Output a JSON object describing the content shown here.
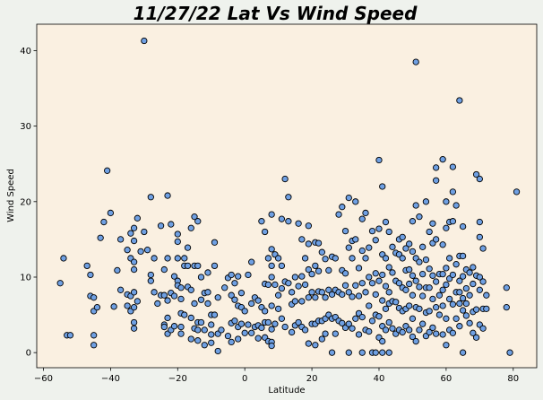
{
  "chart_data": {
    "type": "scatter",
    "title": "11/27/22 Lat Vs Wind Speed",
    "xlabel": "Latitude",
    "ylabel": "Wind Speed",
    "xlim": [
      -62,
      87
    ],
    "ylim": [
      -2,
      43.5
    ],
    "xticks": [
      -60,
      -40,
      -20,
      0,
      20,
      40,
      60,
      80
    ],
    "yticks": [
      0,
      10,
      20,
      30,
      40
    ],
    "grid": false,
    "colors": {
      "plot_background": "#faf0e1",
      "figure_background": "#eff2ed",
      "marker_fill": "#6fa0e3",
      "marker_edge": "#000000"
    },
    "points": [
      [
        -55,
        9.2
      ],
      [
        -54,
        12.5
      ],
      [
        -53,
        2.3
      ],
      [
        -52,
        2.3
      ],
      [
        -47,
        11.5
      ],
      [
        -46,
        10.3
      ],
      [
        -46,
        7.5
      ],
      [
        -45,
        7.3
      ],
      [
        -45,
        5.5
      ],
      [
        -45,
        2.3
      ],
      [
        -45,
        1.0
      ],
      [
        -44,
        6.0
      ],
      [
        -43,
        15.2
      ],
      [
        -42,
        17.3
      ],
      [
        -41,
        24.1
      ],
      [
        -40,
        18.5
      ],
      [
        -39,
        6.1
      ],
      [
        -38,
        10.9
      ],
      [
        -37,
        15.0
      ],
      [
        -37,
        8.3
      ],
      [
        -35,
        13.6
      ],
      [
        -35,
        7.7
      ],
      [
        -35,
        6.2
      ],
      [
        -34,
        15.8
      ],
      [
        -34,
        12.5
      ],
      [
        -34,
        7.5
      ],
      [
        -34,
        5.5
      ],
      [
        -33,
        16.5
      ],
      [
        -33,
        14.8
      ],
      [
        -33,
        12.0
      ],
      [
        -33,
        11.0
      ],
      [
        -33,
        8.0
      ],
      [
        -33,
        6.0
      ],
      [
        -33,
        4.0
      ],
      [
        -33,
        3.2
      ],
      [
        -32,
        17.8
      ],
      [
        -32,
        6.8
      ],
      [
        -31,
        13.4
      ],
      [
        -30,
        16.0
      ],
      [
        -30,
        41.3
      ],
      [
        -29,
        13.6
      ],
      [
        -28,
        20.6
      ],
      [
        -28,
        10.3
      ],
      [
        -28,
        9.5
      ],
      [
        -27,
        12.5
      ],
      [
        -27,
        8.0
      ],
      [
        -26,
        6.5
      ],
      [
        -25,
        16.8
      ],
      [
        -25,
        7.6
      ],
      [
        -24,
        11.0
      ],
      [
        -24,
        7.6
      ],
      [
        -24,
        3.7
      ],
      [
        -24,
        3.4
      ],
      [
        -23,
        20.8
      ],
      [
        -23,
        12.5
      ],
      [
        -23,
        6.9
      ],
      [
        -23,
        4.6
      ],
      [
        -23,
        2.5
      ],
      [
        -22,
        17.0
      ],
      [
        -22,
        7.9
      ],
      [
        -22,
        3.0
      ],
      [
        -21,
        10.1
      ],
      [
        -21,
        7.5
      ],
      [
        -21,
        3.5
      ],
      [
        -20,
        15.7
      ],
      [
        -20,
        14.7
      ],
      [
        -20,
        12.5
      ],
      [
        -20,
        9.5
      ],
      [
        -20,
        8.9
      ],
      [
        -19,
        8.6
      ],
      [
        -19,
        7.1
      ],
      [
        -19,
        5.2
      ],
      [
        -19,
        3.4
      ],
      [
        -19,
        2.5
      ],
      [
        -18,
        12.5
      ],
      [
        -18,
        11.5
      ],
      [
        -18,
        5.0
      ],
      [
        -17,
        13.9
      ],
      [
        -17,
        11.5
      ],
      [
        -17,
        8.7
      ],
      [
        -16,
        16.5
      ],
      [
        -16,
        8.3
      ],
      [
        -16,
        4.6
      ],
      [
        -16,
        1.8
      ],
      [
        -15,
        18.0
      ],
      [
        -15,
        11.5
      ],
      [
        -15,
        6.5
      ],
      [
        -15,
        3.2
      ],
      [
        -14,
        17.4
      ],
      [
        -14,
        11.5
      ],
      [
        -14,
        4.0
      ],
      [
        -14,
        3.0
      ],
      [
        -14,
        1.6
      ],
      [
        -13,
        10.0
      ],
      [
        -13,
        7.0
      ],
      [
        -13,
        4.0
      ],
      [
        -12,
        7.9
      ],
      [
        -12,
        3.0
      ],
      [
        -12,
        1.0
      ],
      [
        -11,
        10.6
      ],
      [
        -11,
        8.0
      ],
      [
        -11,
        6.5
      ],
      [
        -10,
        5.0
      ],
      [
        -10,
        3.7
      ],
      [
        -10,
        2.4
      ],
      [
        -10,
        1.3
      ],
      [
        -9,
        14.6
      ],
      [
        -9,
        11.5
      ],
      [
        -9,
        5.0
      ],
      [
        -8,
        7.3
      ],
      [
        -8,
        2.5
      ],
      [
        -8,
        0.2
      ],
      [
        -7,
        3.0
      ],
      [
        -6,
        8.6
      ],
      [
        -5,
        9.9
      ],
      [
        -5,
        2.2
      ],
      [
        -4,
        10.3
      ],
      [
        -4,
        7.6
      ],
      [
        -4,
        3.9
      ],
      [
        -4,
        1.4
      ],
      [
        -3,
        9.2
      ],
      [
        -3,
        7.0
      ],
      [
        -3,
        4.2
      ],
      [
        -2,
        10.1
      ],
      [
        -2,
        6.2
      ],
      [
        -2,
        3.4
      ],
      [
        -2,
        1.8
      ],
      [
        -1,
        7.9
      ],
      [
        -1,
        6.0
      ],
      [
        -1,
        3.8
      ],
      [
        0,
        5.5
      ],
      [
        0,
        2.6
      ],
      [
        1,
        10.3
      ],
      [
        1,
        3.7
      ],
      [
        2,
        12.0
      ],
      [
        2,
        6.5
      ],
      [
        2,
        2.6
      ],
      [
        3,
        7.3
      ],
      [
        3,
        3.4
      ],
      [
        4,
        6.9
      ],
      [
        4,
        3.6
      ],
      [
        4,
        1.9
      ],
      [
        5,
        17.4
      ],
      [
        5,
        6.0
      ],
      [
        5,
        3.3
      ],
      [
        6,
        16.0
      ],
      [
        6,
        9.1
      ],
      [
        6,
        5.5
      ],
      [
        6,
        4.0
      ],
      [
        6,
        2.0
      ],
      [
        7,
        12.5
      ],
      [
        7,
        9.0
      ],
      [
        7,
        4.0
      ],
      [
        7,
        1.5
      ],
      [
        8,
        18.3
      ],
      [
        8,
        13.7
      ],
      [
        8,
        11.5
      ],
      [
        8,
        10.0
      ],
      [
        8,
        6.2
      ],
      [
        8,
        3.1
      ],
      [
        8,
        1.4
      ],
      [
        8,
        0.9
      ],
      [
        9,
        13.0
      ],
      [
        9,
        9.0
      ],
      [
        9,
        3.8
      ],
      [
        10,
        12.5
      ],
      [
        10,
        7.6
      ],
      [
        10,
        5.8
      ],
      [
        11,
        17.7
      ],
      [
        11,
        11.5
      ],
      [
        11,
        8.5
      ],
      [
        11,
        4.5
      ],
      [
        12,
        23.0
      ],
      [
        12,
        9.4
      ],
      [
        12,
        3.4
      ],
      [
        13,
        20.6
      ],
      [
        13,
        17.4
      ],
      [
        13,
        9.2
      ],
      [
        14,
        8.0
      ],
      [
        14,
        6.4
      ],
      [
        14,
        2.7
      ],
      [
        15,
        10.0
      ],
      [
        15,
        6.8
      ],
      [
        15,
        3.6
      ],
      [
        16,
        17.1
      ],
      [
        16,
        8.8
      ],
      [
        16,
        4.0
      ],
      [
        17,
        15.0
      ],
      [
        17,
        10.1
      ],
      [
        17,
        6.8
      ],
      [
        17,
        3.4
      ],
      [
        18,
        12.5
      ],
      [
        18,
        9.0
      ],
      [
        18,
        3.0
      ],
      [
        19,
        16.8
      ],
      [
        19,
        14.4
      ],
      [
        19,
        11.0
      ],
      [
        19,
        7.3
      ],
      [
        19,
        1.2
      ],
      [
        20,
        10.4
      ],
      [
        20,
        8.0
      ],
      [
        20,
        3.8
      ],
      [
        21,
        14.6
      ],
      [
        21,
        11.5
      ],
      [
        21,
        7.3
      ],
      [
        21,
        3.8
      ],
      [
        21,
        1.0
      ],
      [
        22,
        14.5
      ],
      [
        22,
        10.8
      ],
      [
        22,
        8.1
      ],
      [
        22,
        4.2
      ],
      [
        23,
        13.3
      ],
      [
        23,
        8.0
      ],
      [
        23,
        4.2
      ],
      [
        23,
        1.8
      ],
      [
        24,
        12.4
      ],
      [
        24,
        7.3
      ],
      [
        24,
        4.5
      ],
      [
        24,
        2.5
      ],
      [
        25,
        10.9
      ],
      [
        25,
        8.3
      ],
      [
        25,
        5.0
      ],
      [
        26,
        12.7
      ],
      [
        26,
        7.7
      ],
      [
        26,
        4.5
      ],
      [
        26,
        0.0
      ],
      [
        27,
        12.5
      ],
      [
        27,
        8.3
      ],
      [
        27,
        4.7
      ],
      [
        27,
        2.5
      ],
      [
        28,
        18.3
      ],
      [
        28,
        8.0
      ],
      [
        28,
        4.2
      ],
      [
        29,
        19.3
      ],
      [
        29,
        10.9
      ],
      [
        29,
        7.7
      ],
      [
        29,
        3.9
      ],
      [
        30,
        16.1
      ],
      [
        30,
        10.5
      ],
      [
        30,
        8.9
      ],
      [
        30,
        3.3
      ],
      [
        31,
        20.5
      ],
      [
        31,
        13.9
      ],
      [
        31,
        8.0
      ],
      [
        31,
        3.8
      ],
      [
        31,
        0.0
      ],
      [
        32,
        14.8
      ],
      [
        32,
        12.5
      ],
      [
        32,
        7.4
      ],
      [
        32,
        3.2
      ],
      [
        33,
        20.0
      ],
      [
        33,
        15.0
      ],
      [
        33,
        8.9
      ],
      [
        33,
        4.5
      ],
      [
        34,
        11.2
      ],
      [
        34,
        7.5
      ],
      [
        34,
        5.2
      ],
      [
        34,
        2.4
      ],
      [
        35,
        17.7
      ],
      [
        35,
        13.5
      ],
      [
        35,
        9.2
      ],
      [
        35,
        4.7
      ],
      [
        35,
        0.0
      ],
      [
        36,
        18.5
      ],
      [
        36,
        12.5
      ],
      [
        36,
        8.0
      ],
      [
        36,
        3.0
      ],
      [
        37,
        13.9
      ],
      [
        37,
        10.0
      ],
      [
        37,
        6.2
      ],
      [
        37,
        2.8
      ],
      [
        38,
        16.1
      ],
      [
        38,
        9.2
      ],
      [
        38,
        4.2
      ],
      [
        38,
        0.0
      ],
      [
        39,
        14.9
      ],
      [
        39,
        10.5
      ],
      [
        39,
        7.7
      ],
      [
        39,
        5.0
      ],
      [
        39,
        0.0
      ],
      [
        40,
        25.5
      ],
      [
        40,
        16.4
      ],
      [
        40,
        9.5
      ],
      [
        40,
        4.8
      ],
      [
        40,
        2.0
      ],
      [
        41,
        22.0
      ],
      [
        41,
        13.0
      ],
      [
        41,
        10.3
      ],
      [
        41,
        6.9
      ],
      [
        41,
        3.5
      ],
      [
        41,
        1.5
      ],
      [
        41,
        0.0
      ],
      [
        42,
        17.3
      ],
      [
        42,
        12.5
      ],
      [
        42,
        8.8
      ],
      [
        42,
        5.8
      ],
      [
        42,
        3.0
      ],
      [
        43,
        16.0
      ],
      [
        43,
        11.3
      ],
      [
        43,
        8.0
      ],
      [
        43,
        6.5
      ],
      [
        43,
        4.0
      ],
      [
        43,
        0.0
      ],
      [
        44,
        14.0
      ],
      [
        44,
        10.6
      ],
      [
        44,
        6.8
      ],
      [
        44,
        3.2
      ],
      [
        45,
        13.2
      ],
      [
        45,
        9.5
      ],
      [
        45,
        6.7
      ],
      [
        45,
        2.5
      ],
      [
        46,
        15.0
      ],
      [
        46,
        13.0
      ],
      [
        46,
        9.2
      ],
      [
        46,
        5.9
      ],
      [
        46,
        3.0
      ],
      [
        47,
        15.3
      ],
      [
        47,
        12.5
      ],
      [
        47,
        8.6
      ],
      [
        47,
        5.5
      ],
      [
        47,
        2.7
      ],
      [
        48,
        13.8
      ],
      [
        48,
        10.9
      ],
      [
        48,
        8.3
      ],
      [
        48,
        5.8
      ],
      [
        48,
        3.5
      ],
      [
        49,
        14.4
      ],
      [
        49,
        11.0
      ],
      [
        49,
        9.1
      ],
      [
        49,
        6.2
      ],
      [
        49,
        3.0
      ],
      [
        50,
        17.4
      ],
      [
        50,
        13.4
      ],
      [
        50,
        10.2
      ],
      [
        50,
        7.6
      ],
      [
        50,
        4.5
      ],
      [
        50,
        2.1
      ],
      [
        51,
        38.5
      ],
      [
        51,
        19.5
      ],
      [
        51,
        12.5
      ],
      [
        51,
        9.5
      ],
      [
        51,
        6.0
      ],
      [
        51,
        1.5
      ],
      [
        52,
        18.0
      ],
      [
        52,
        12.0
      ],
      [
        52,
        8.7
      ],
      [
        52,
        5.8
      ],
      [
        52,
        3.0
      ],
      [
        53,
        14.0
      ],
      [
        53,
        10.4
      ],
      [
        53,
        7.5
      ],
      [
        53,
        3.8
      ],
      [
        54,
        20.0
      ],
      [
        54,
        12.3
      ],
      [
        54,
        8.6
      ],
      [
        54,
        5.3
      ],
      [
        54,
        2.2
      ],
      [
        55,
        16.0
      ],
      [
        55,
        11.1
      ],
      [
        55,
        8.6
      ],
      [
        55,
        5.5
      ],
      [
        55,
        2.7
      ],
      [
        56,
        17.1
      ],
      [
        56,
        14.5
      ],
      [
        56,
        10.2
      ],
      [
        56,
        7.1
      ],
      [
        56,
        3.3
      ],
      [
        57,
        24.5
      ],
      [
        57,
        22.8
      ],
      [
        57,
        15.0
      ],
      [
        57,
        9.4
      ],
      [
        57,
        6.0
      ],
      [
        57,
        2.5
      ],
      [
        58,
        10.4
      ],
      [
        58,
        7.6
      ],
      [
        58,
        5.0
      ],
      [
        59,
        25.6
      ],
      [
        59,
        14.3
      ],
      [
        59,
        10.4
      ],
      [
        59,
        8.3
      ],
      [
        59,
        6.2
      ],
      [
        59,
        2.4
      ],
      [
        60,
        20.0
      ],
      [
        60,
        16.5
      ],
      [
        60,
        11.2
      ],
      [
        60,
        9.0
      ],
      [
        60,
        4.5
      ],
      [
        60,
        1.0
      ],
      [
        61,
        17.3
      ],
      [
        61,
        12.5
      ],
      [
        61,
        9.8
      ],
      [
        61,
        7.1
      ],
      [
        61,
        3.0
      ],
      [
        62,
        24.6
      ],
      [
        62,
        21.3
      ],
      [
        62,
        17.4
      ],
      [
        62,
        10.3
      ],
      [
        62,
        6.4
      ],
      [
        62,
        2.6
      ],
      [
        63,
        19.5
      ],
      [
        63,
        11.7
      ],
      [
        63,
        8.0
      ],
      [
        63,
        4.5
      ],
      [
        64,
        33.4
      ],
      [
        64,
        12.8
      ],
      [
        64,
        9.5
      ],
      [
        64,
        8.0
      ],
      [
        64,
        6.5
      ],
      [
        64,
        3.5
      ],
      [
        65,
        16.7
      ],
      [
        65,
        12.8
      ],
      [
        65,
        10.1
      ],
      [
        65,
        7.2
      ],
      [
        65,
        5.6
      ],
      [
        65,
        0.0
      ],
      [
        66,
        11.0
      ],
      [
        66,
        8.5
      ],
      [
        66,
        6.5
      ],
      [
        66,
        4.9
      ],
      [
        67,
        10.6
      ],
      [
        67,
        7.6
      ],
      [
        67,
        3.9
      ],
      [
        68,
        11.3
      ],
      [
        68,
        9.1
      ],
      [
        68,
        5.4
      ],
      [
        68,
        2.6
      ],
      [
        69,
        23.6
      ],
      [
        69,
        10.2
      ],
      [
        69,
        5.7
      ],
      [
        69,
        2.0
      ],
      [
        70,
        23.0
      ],
      [
        70,
        17.3
      ],
      [
        70,
        15.3
      ],
      [
        70,
        10.0
      ],
      [
        70,
        8.3
      ],
      [
        70,
        3.7
      ],
      [
        71,
        13.8
      ],
      [
        71,
        9.4
      ],
      [
        71,
        5.8
      ],
      [
        71,
        3.2
      ],
      [
        72,
        7.6
      ],
      [
        72,
        5.8
      ],
      [
        78,
        8.6
      ],
      [
        78,
        6.0
      ],
      [
        79,
        0.0
      ],
      [
        81,
        21.3
      ]
    ]
  }
}
